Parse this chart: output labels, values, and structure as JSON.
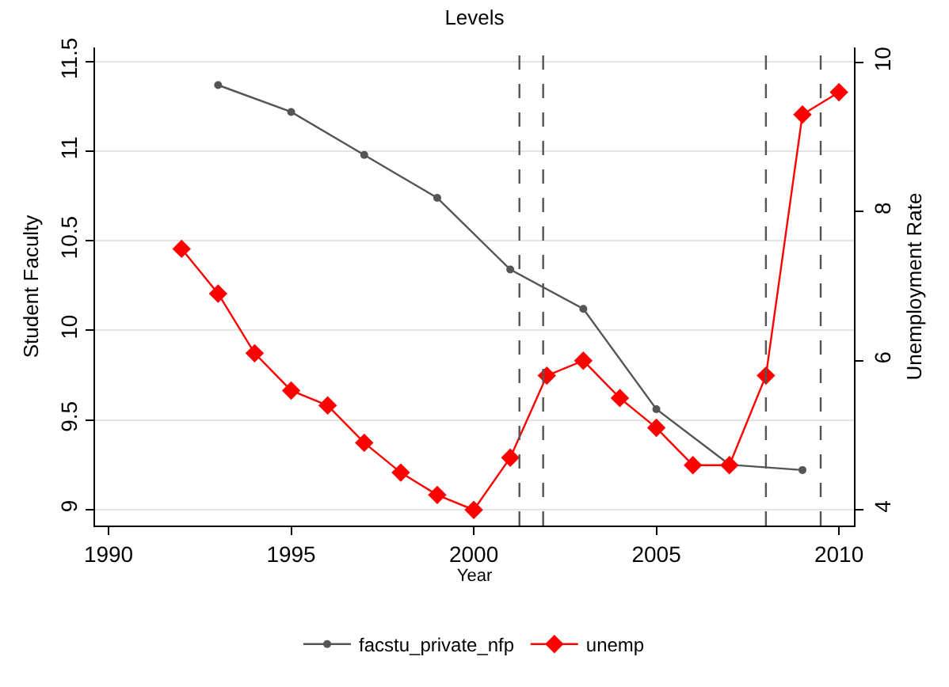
{
  "chart_data": {
    "type": "line",
    "title": "Levels",
    "xlabel": "Year",
    "ylabel": "Student Faculty",
    "y2label": "Unemployment Rate",
    "xlim": [
      1989.63,
      2010.41
    ],
    "xticks": [
      1990,
      1995,
      2000,
      2005,
      2010
    ],
    "ylim": [
      8.91,
      11.58
    ],
    "yticks": [
      9,
      9.5,
      10,
      10.5,
      11,
      11.5
    ],
    "y2lim": [
      3.79,
      10.2
    ],
    "y2ticks": [
      4,
      6,
      8,
      10
    ],
    "grid": "y",
    "legend": "bottom",
    "series": [
      {
        "name": "facstu_private_nfp",
        "color": "#555555",
        "marker": "circle",
        "x": [
          1993,
          1995,
          1997,
          1999,
          2001,
          2003,
          2005,
          2007,
          2009
        ],
        "values": [
          11.37,
          11.22,
          10.98,
          10.74,
          10.34,
          10.12,
          9.56,
          9.25,
          9.22
        ]
      },
      {
        "name": "unemp",
        "color": "#ff0000",
        "marker": "diamond",
        "axis": "y2",
        "x": [
          1992,
          1993,
          1994,
          1995,
          1996,
          1997,
          1998,
          1999,
          2000,
          2001,
          2002,
          2003,
          2004,
          2005,
          2006,
          2007,
          2008,
          2009,
          2010
        ],
        "values": [
          7.5,
          6.9,
          6.1,
          5.6,
          5.4,
          4.9,
          4.5,
          4.2,
          4.0,
          4.7,
          5.8,
          6.0,
          5.5,
          5.1,
          4.6,
          4.6,
          5.8,
          9.3,
          9.6
        ]
      }
    ],
    "ref_lines": [
      {
        "axis": "x",
        "value": 2001.25,
        "color": "#555555",
        "line_style": "dashed"
      },
      {
        "axis": "x",
        "value": 2001.9,
        "color": "#555555",
        "line_style": "dashed"
      },
      {
        "axis": "x",
        "value": 2008,
        "color": "#555555",
        "line_style": "dashed"
      },
      {
        "axis": "x",
        "value": 2009.5,
        "color": "#555555",
        "line_style": "dashed"
      }
    ]
  }
}
